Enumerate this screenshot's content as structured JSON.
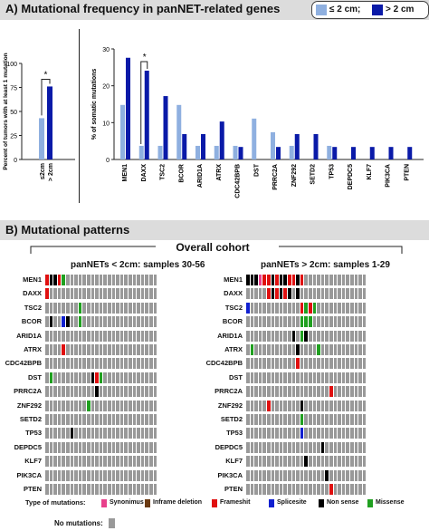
{
  "panel_a": {
    "title": "A)  Mutational frequency in panNET-related genes",
    "legend": [
      {
        "label": "≤ 2 cm;",
        "color": "#8fb0e0"
      },
      {
        "label": "> 2 cm",
        "color": "#0a1aa8"
      }
    ]
  },
  "panel_b": {
    "title": "B)  Mutational patterns",
    "cohort_label": "Overall cohort",
    "left_title": "panNETs < 2cm: samples 30-56",
    "right_title": "panNETs > 2cm: samples 1-29",
    "legend_title": "Type of mutations:",
    "mutation_types": [
      {
        "label": "Synonimus",
        "color": "#e8408c"
      },
      {
        "label": "Inframe deletion",
        "color": "#6b3a12"
      },
      {
        "label": "Frameshit",
        "color": "#e01010"
      },
      {
        "label": "Splicesite",
        "color": "#1020d0"
      },
      {
        "label": "Non sense",
        "color": "#000000"
      },
      {
        "label": "Missense",
        "color": "#20a020"
      }
    ],
    "no_mutation_label": "No mutations:",
    "no_mutation_color": "#999999",
    "genes": [
      "MEN1",
      "DAXX",
      "TSC2",
      "BCOR",
      "ARID1A",
      "ATRX",
      "CDC42BPB",
      "DST",
      "PRRC2A",
      "ZNF292",
      "SETD2",
      "TP53",
      "DEPDC5",
      "KLF7",
      "PIK3CA",
      "PTEN"
    ],
    "left_samples": 27,
    "right_samples": 29,
    "left_mutations": [
      {
        "gene": "MEN1",
        "sample": 0,
        "type": "Frameshit"
      },
      {
        "gene": "MEN1",
        "sample": 1,
        "type": "Non sense"
      },
      {
        "gene": "MEN1",
        "sample": 2,
        "type": "Non sense"
      },
      {
        "gene": "MEN1",
        "sample": 3,
        "type": "Frameshit"
      },
      {
        "gene": "MEN1",
        "sample": 4,
        "type": "Missense"
      },
      {
        "gene": "DAXX",
        "sample": 0,
        "type": "Frameshit"
      },
      {
        "gene": "TSC2",
        "sample": 8,
        "type": "Missense"
      },
      {
        "gene": "BCOR",
        "sample": 1,
        "type": "Non sense"
      },
      {
        "gene": "BCOR",
        "sample": 4,
        "type": "Splicesite"
      },
      {
        "gene": "BCOR",
        "sample": 5,
        "type": "Non sense"
      },
      {
        "gene": "BCOR",
        "sample": 8,
        "type": "Missense"
      },
      {
        "gene": "ATRX",
        "sample": 4,
        "type": "Frameshit"
      },
      {
        "gene": "DST",
        "sample": 1,
        "type": "Missense"
      },
      {
        "gene": "DST",
        "sample": 11,
        "type": "Non sense"
      },
      {
        "gene": "DST",
        "sample": 12,
        "type": "Frameshit"
      },
      {
        "gene": "DST",
        "sample": 13,
        "type": "Missense"
      },
      {
        "gene": "PRRC2A",
        "sample": 12,
        "type": "Non sense"
      },
      {
        "gene": "ZNF292",
        "sample": 10,
        "type": "Missense"
      },
      {
        "gene": "TP53",
        "sample": 6,
        "type": "Non sense"
      }
    ],
    "right_mutations": [
      {
        "gene": "MEN1",
        "sample": 0,
        "type": "Non sense"
      },
      {
        "gene": "MEN1",
        "sample": 1,
        "type": "Non sense"
      },
      {
        "gene": "MEN1",
        "sample": 2,
        "type": "Non sense"
      },
      {
        "gene": "MEN1",
        "sample": 3,
        "type": "Synonimus"
      },
      {
        "gene": "MEN1",
        "sample": 4,
        "type": "Frameshit"
      },
      {
        "gene": "MEN1",
        "sample": 5,
        "type": "Frameshit"
      },
      {
        "gene": "MEN1",
        "sample": 6,
        "type": "Non sense"
      },
      {
        "gene": "MEN1",
        "sample": 7,
        "type": "Frameshit"
      },
      {
        "gene": "MEN1",
        "sample": 8,
        "type": "Non sense"
      },
      {
        "gene": "MEN1",
        "sample": 9,
        "type": "Non sense"
      },
      {
        "gene": "MEN1",
        "sample": 10,
        "type": "Frameshit"
      },
      {
        "gene": "MEN1",
        "sample": 11,
        "type": "Frameshit"
      },
      {
        "gene": "MEN1",
        "sample": 12,
        "type": "Non sense"
      },
      {
        "gene": "MEN1",
        "sample": 13,
        "type": "Frameshit"
      },
      {
        "gene": "DAXX",
        "sample": 5,
        "type": "Frameshit"
      },
      {
        "gene": "DAXX",
        "sample": 6,
        "type": "Non sense"
      },
      {
        "gene": "DAXX",
        "sample": 7,
        "type": "Frameshit"
      },
      {
        "gene": "DAXX",
        "sample": 8,
        "type": "Non sense"
      },
      {
        "gene": "DAXX",
        "sample": 9,
        "type": "Frameshit"
      },
      {
        "gene": "DAXX",
        "sample": 10,
        "type": "Non sense"
      },
      {
        "gene": "DAXX",
        "sample": 12,
        "type": "Non sense"
      },
      {
        "gene": "TSC2",
        "sample": 0,
        "type": "Splicesite"
      },
      {
        "gene": "TSC2",
        "sample": 13,
        "type": "Frameshit"
      },
      {
        "gene": "TSC2",
        "sample": 14,
        "type": "Missense"
      },
      {
        "gene": "TSC2",
        "sample": 15,
        "type": "Frameshit"
      },
      {
        "gene": "TSC2",
        "sample": 16,
        "type": "Missense"
      },
      {
        "gene": "BCOR",
        "sample": 13,
        "type": "Missense"
      },
      {
        "gene": "BCOR",
        "sample": 14,
        "type": "Missense"
      },
      {
        "gene": "BCOR",
        "sample": 15,
        "type": "Missense"
      },
      {
        "gene": "ARID1A",
        "sample": 11,
        "type": "Non sense"
      },
      {
        "gene": "ARID1A",
        "sample": 13,
        "type": "Missense"
      },
      {
        "gene": "ARID1A",
        "sample": 14,
        "type": "Non sense"
      },
      {
        "gene": "ATRX",
        "sample": 1,
        "type": "Missense"
      },
      {
        "gene": "ATRX",
        "sample": 12,
        "type": "Non sense"
      },
      {
        "gene": "ATRX",
        "sample": 17,
        "type": "Missense"
      },
      {
        "gene": "CDC42BPB",
        "sample": 12,
        "type": "Frameshit"
      },
      {
        "gene": "PRRC2A",
        "sample": 20,
        "type": "Frameshit"
      },
      {
        "gene": "ZNF292",
        "sample": 5,
        "type": "Frameshit"
      },
      {
        "gene": "ZNF292",
        "sample": 13,
        "type": "Non sense"
      },
      {
        "gene": "SETD2",
        "sample": 13,
        "type": "Missense"
      },
      {
        "gene": "TP53",
        "sample": 13,
        "type": "Splicesite"
      },
      {
        "gene": "DEPDC5",
        "sample": 18,
        "type": "Non sense"
      },
      {
        "gene": "KLF7",
        "sample": 14,
        "type": "Non sense"
      },
      {
        "gene": "PIK3CA",
        "sample": 19,
        "type": "Non sense"
      },
      {
        "gene": "PTEN",
        "sample": 20,
        "type": "Frameshit"
      }
    ]
  },
  "chart_data": [
    {
      "type": "bar",
      "ylabel": "Percent of tumors with at least 1 mutation",
      "categories": [
        "≤2cm",
        "> 2cm"
      ],
      "values": [
        43,
        76
      ],
      "colors": [
        "#8fb0e0",
        "#0a1aa8"
      ],
      "ylim": [
        0,
        100
      ],
      "yticks": [
        "0",
        "25",
        "50",
        "75",
        "100"
      ],
      "annotation": "*"
    },
    {
      "type": "bar",
      "ylabel": "% of somatic mutations",
      "categories": [
        "MEN1",
        "DAXX",
        "TSC2",
        "BCOR",
        "ARID1A",
        "ATRX",
        "CDC42BPB",
        "DST",
        "PRRC2A",
        "ZNF292",
        "SETD2",
        "TP53",
        "DEPDC5",
        "KLF7",
        "PIK3CA",
        "PTEN"
      ],
      "series": [
        {
          "name": "≤ 2 cm",
          "values": [
            14.8,
            3.7,
            3.7,
            14.8,
            3.7,
            3.7,
            3.7,
            11.1,
            7.4,
            3.7,
            0,
            3.7,
            0,
            0,
            0,
            0
          ]
        },
        {
          "name": "> 2 cm",
          "values": [
            27.6,
            24.1,
            17.2,
            6.9,
            6.9,
            10.3,
            3.4,
            0,
            3.4,
            6.9,
            6.9,
            3.4,
            3.4,
            3.4,
            3.4,
            3.4
          ]
        }
      ],
      "ylim": [
        0,
        30
      ],
      "yticks": [
        "0",
        "10",
        "20",
        "30"
      ],
      "annotation": "*"
    }
  ]
}
